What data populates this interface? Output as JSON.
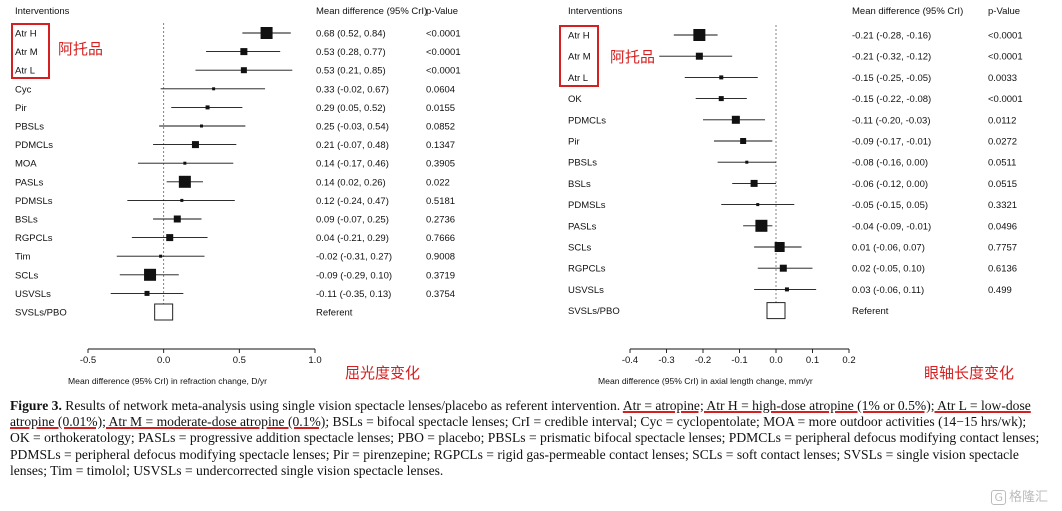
{
  "chart_data": [
    {
      "type": "forest",
      "header": {
        "label_col": "Interventions",
        "ci_col": "Mean difference (95% CrI)",
        "p_col": "p-Value"
      },
      "xlabel": "Mean difference (95% CrI) in refraction change, D/yr",
      "xlim": [
        -0.5,
        1.0
      ],
      "xticks": [
        -0.5,
        0.0,
        0.5,
        1.0
      ],
      "xtick_labels": [
        "-0.5",
        "0.0",
        "0.5",
        "1.0"
      ],
      "annotation": "屈光度变化",
      "group_label": "阿托品",
      "rows": [
        {
          "name": "Atr H",
          "mean": 0.68,
          "lo": 0.52,
          "hi": 0.84,
          "ci": "0.68 (0.52, 0.84)",
          "p": "<0.0001",
          "size": 6
        },
        {
          "name": "Atr M",
          "mean": 0.53,
          "lo": 0.28,
          "hi": 0.77,
          "ci": "0.53 (0.28, 0.77)",
          "p": "<0.0001",
          "size": 3.5
        },
        {
          "name": "Atr L",
          "mean": 0.53,
          "lo": 0.21,
          "hi": 0.85,
          "ci": "0.53 (0.21, 0.85)",
          "p": "<0.0001",
          "size": 3
        },
        {
          "name": "Cyc",
          "mean": 0.33,
          "lo": -0.02,
          "hi": 0.67,
          "ci": "0.33 (-0.02, 0.67)",
          "p": "0.0604",
          "size": 1.5
        },
        {
          "name": "Pir",
          "mean": 0.29,
          "lo": 0.05,
          "hi": 0.52,
          "ci": "0.29 (0.05, 0.52)",
          "p": "0.0155",
          "size": 2
        },
        {
          "name": "PBSLs",
          "mean": 0.25,
          "lo": -0.03,
          "hi": 0.54,
          "ci": "0.25 (-0.03, 0.54)",
          "p": "0.0852",
          "size": 1.5
        },
        {
          "name": "PDMCLs",
          "mean": 0.21,
          "lo": -0.07,
          "hi": 0.48,
          "ci": "0.21 (-0.07, 0.48)",
          "p": "0.1347",
          "size": 3.5
        },
        {
          "name": "MOA",
          "mean": 0.14,
          "lo": -0.17,
          "hi": 0.46,
          "ci": "0.14 (-0.17, 0.46)",
          "p": "0.3905",
          "size": 1.5
        },
        {
          "name": "PASLs",
          "mean": 0.14,
          "lo": 0.02,
          "hi": 0.26,
          "ci": "0.14 (0.02, 0.26)",
          "p": "0.022",
          "size": 6
        },
        {
          "name": "PDMSLs",
          "mean": 0.12,
          "lo": -0.24,
          "hi": 0.47,
          "ci": "0.12 (-0.24, 0.47)",
          "p": "0.5181",
          "size": 1.5
        },
        {
          "name": "BSLs",
          "mean": 0.09,
          "lo": -0.07,
          "hi": 0.25,
          "ci": "0.09 (-0.07, 0.25)",
          "p": "0.2736",
          "size": 3.5
        },
        {
          "name": "RGPCLs",
          "mean": 0.04,
          "lo": -0.21,
          "hi": 0.29,
          "ci": "0.04 (-0.21, 0.29)",
          "p": "0.7666",
          "size": 3.5
        },
        {
          "name": "Tim",
          "mean": -0.02,
          "lo": -0.31,
          "hi": 0.27,
          "ci": "-0.02 (-0.31, 0.27)",
          "p": "0.9008",
          "size": 1.5
        },
        {
          "name": "SCLs",
          "mean": -0.09,
          "lo": -0.29,
          "hi": 0.1,
          "ci": "-0.09 (-0.29, 0.10)",
          "p": "0.3719",
          "size": 6
        },
        {
          "name": "USVSLs",
          "mean": -0.11,
          "lo": -0.35,
          "hi": 0.13,
          "ci": "-0.11 (-0.35, 0.13)",
          "p": "0.3754",
          "size": 2.5
        },
        {
          "name": "SVSLs/PBO",
          "mean": 0.0,
          "ref": true,
          "ci": "Referent",
          "p": ""
        }
      ]
    },
    {
      "type": "forest",
      "header": {
        "label_col": "Interventions",
        "ci_col": "Mean difference (95% CrI)",
        "p_col": "p-Value"
      },
      "xlabel": "Mean difference (95% CrI) in axial length change, mm/yr",
      "xlim": [
        -0.4,
        0.2
      ],
      "xticks": [
        -0.4,
        -0.3,
        -0.2,
        -0.1,
        0.0,
        0.1,
        0.2
      ],
      "xtick_labels": [
        "-0.4",
        "-0.3",
        "-0.2",
        "-0.1",
        "0.0",
        "0.1",
        "0.2"
      ],
      "annotation": "眼轴长度变化",
      "group_label": "阿托品",
      "rows": [
        {
          "name": "Atr H",
          "mean": -0.21,
          "lo": -0.28,
          "hi": -0.16,
          "ci": "-0.21 (-0.28, -0.16)",
          "p": "<0.0001",
          "size": 6
        },
        {
          "name": "Atr M",
          "mean": -0.21,
          "lo": -0.32,
          "hi": -0.12,
          "ci": "-0.21 (-0.32, -0.12)",
          "p": "<0.0001",
          "size": 3.5
        },
        {
          "name": "Atr L",
          "mean": -0.15,
          "lo": -0.25,
          "hi": -0.05,
          "ci": "-0.15 (-0.25, -0.05)",
          "p": "0.0033",
          "size": 2
        },
        {
          "name": "OK",
          "mean": -0.15,
          "lo": -0.22,
          "hi": -0.08,
          "ci": "-0.15 (-0.22, -0.08)",
          "p": "<0.0001",
          "size": 2.5
        },
        {
          "name": "PDMCLs",
          "mean": -0.11,
          "lo": -0.2,
          "hi": -0.03,
          "ci": "-0.11 (-0.20, -0.03)",
          "p": "0.0112",
          "size": 4
        },
        {
          "name": "Pir",
          "mean": -0.09,
          "lo": -0.17,
          "hi": -0.01,
          "ci": "-0.09 (-0.17, -0.01)",
          "p": "0.0272",
          "size": 3
        },
        {
          "name": "PBSLs",
          "mean": -0.08,
          "lo": -0.16,
          "hi": 0.0,
          "ci": "-0.08 (-0.16, 0.00)",
          "p": "0.0511",
          "size": 1.5
        },
        {
          "name": "BSLs",
          "mean": -0.06,
          "lo": -0.12,
          "hi": 0.0,
          "ci": "-0.06 (-0.12, 0.00)",
          "p": "0.0515",
          "size": 3.5
        },
        {
          "name": "PDMSLs",
          "mean": -0.05,
          "lo": -0.15,
          "hi": 0.05,
          "ci": "-0.05 (-0.15, 0.05)",
          "p": "0.3321",
          "size": 1.5
        },
        {
          "name": "PASLs",
          "mean": -0.04,
          "lo": -0.09,
          "hi": -0.01,
          "ci": "-0.04 (-0.09, -0.01)",
          "p": "0.0496",
          "size": 6
        },
        {
          "name": "SCLs",
          "mean": 0.01,
          "lo": -0.06,
          "hi": 0.07,
          "ci": "0.01 (-0.06, 0.07)",
          "p": "0.7757",
          "size": 5
        },
        {
          "name": "RGPCLs",
          "mean": 0.02,
          "lo": -0.05,
          "hi": 0.1,
          "ci": "0.02 (-0.05, 0.10)",
          "p": "0.6136",
          "size": 3.5
        },
        {
          "name": "USVSLs",
          "mean": 0.03,
          "lo": -0.06,
          "hi": 0.11,
          "ci": "0.03 (-0.06, 0.11)",
          "p": "0.499",
          "size": 2
        },
        {
          "name": "SVSLs/PBO",
          "mean": 0.0,
          "ref": true,
          "ci": "Referent",
          "p": ""
        }
      ]
    }
  ],
  "caption": {
    "figure_label": "Figure 3.",
    "intro": " Results of network meta-analysis using single vision spectacle lenses/placebo as referent intervention. ",
    "underlined": "Atr = atropine; Atr H = high-dose atropine (1% or 0.5%); Atr L = low-dose atropine (0.01%); Atr M = moderate-dose atropine (0.1%)",
    "rest": "; BSLs = bifocal spectacle lenses; CrI = credible interval; Cyc = cyclopentolate; MOA = more outdoor activities (14−15 hrs/wk); OK = orthokeratology; PASLs = progressive addition spectacle lenses; PBO = placebo; PBSLs = prismatic bifocal spectacle lenses; PDMCLs = peripheral defocus modifying contact lenses; PDMSLs = peripheral defocus modifying spectacle lenses; Pir = pirenzepine; RGPCLs = rigid gas-permeable contact lenses; SCLs = soft contact lenses; SVSLs = single vision spectacle lenses; Tim = timolol; USVSLs = undercorrected single vision spectacle lenses."
  },
  "watermark": {
    "logo": "G",
    "text": "格隆汇"
  },
  "colors": {
    "accent_red": "#d42020",
    "marker": "#111111"
  }
}
